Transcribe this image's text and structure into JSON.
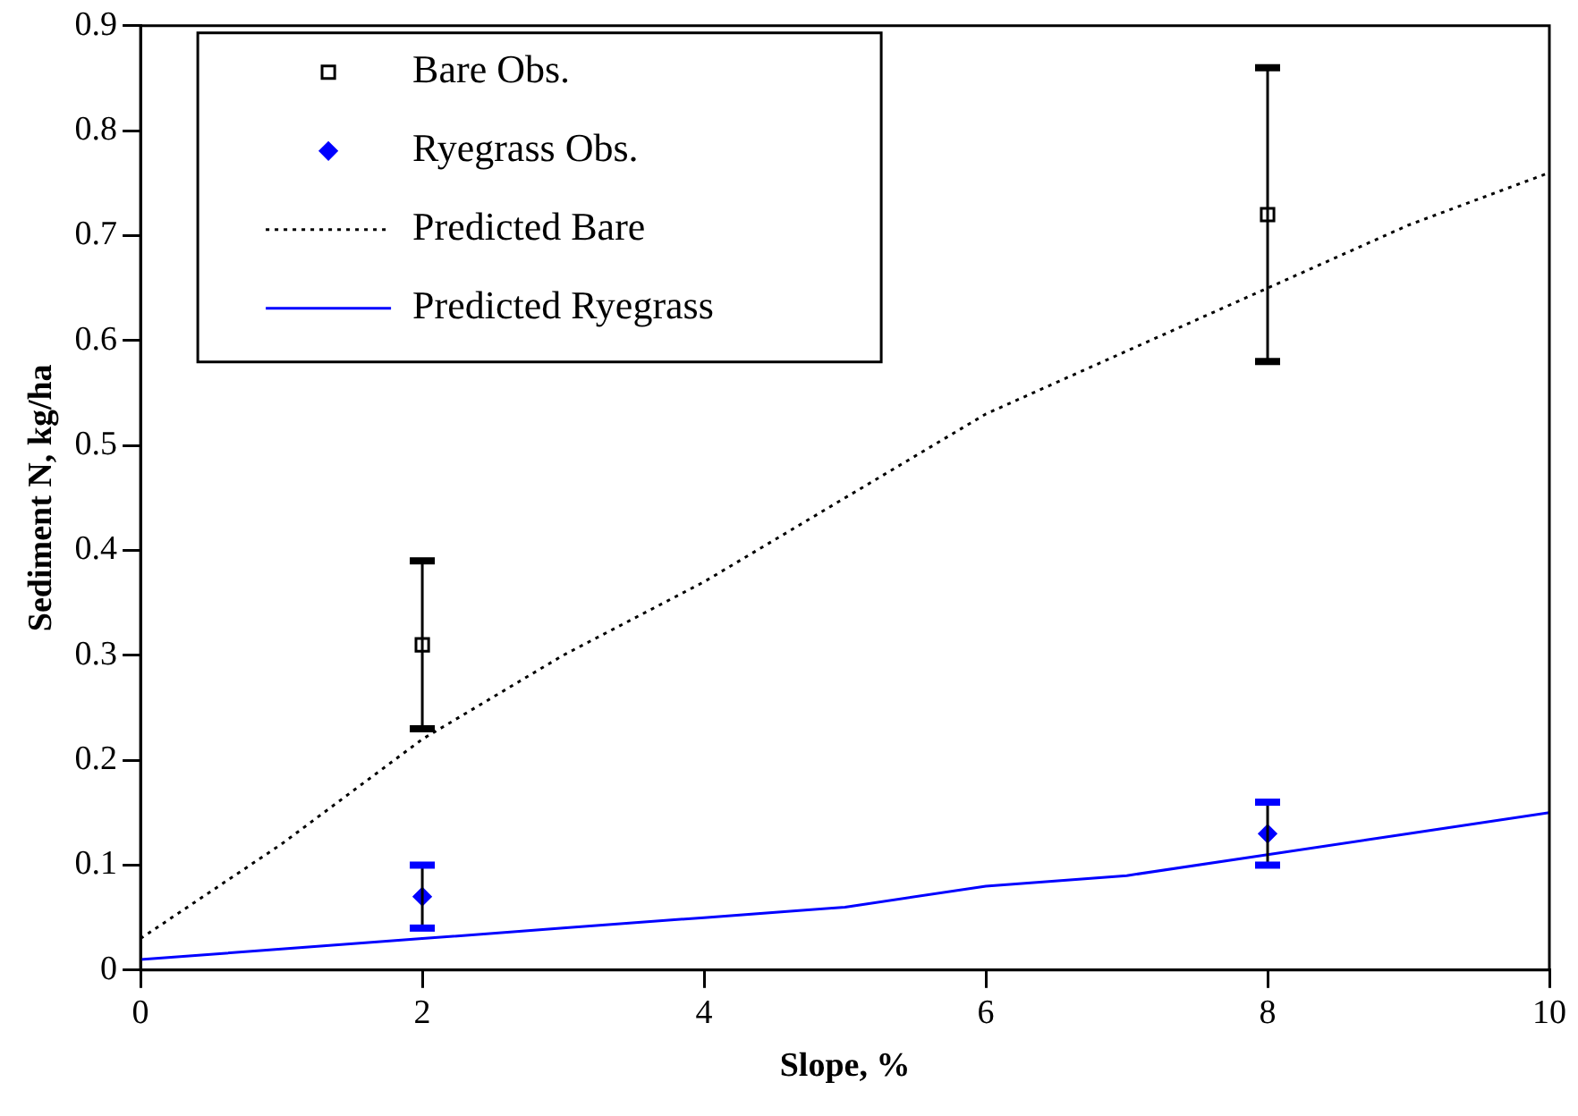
{
  "chart_data": {
    "type": "scatter",
    "xlabel": "Slope, %",
    "ylabel": "Sediment N, kg/ha",
    "xlim": [
      0,
      10
    ],
    "xticks": [
      0,
      2,
      4,
      6,
      8,
      10
    ],
    "ylim": [
      0,
      0.9
    ],
    "yticks": [
      0,
      0.1,
      0.2,
      0.3,
      0.4,
      0.5,
      0.6,
      0.7,
      0.8,
      0.9
    ],
    "grid": false,
    "legend": "top left",
    "series": [
      {
        "name": "Bare Obs.",
        "type": "scatter",
        "marker": "square",
        "color": "#000000",
        "x": [
          2,
          8
        ],
        "values": [
          0.31,
          0.72
        ],
        "errors": [
          [
            0.23,
            0.39
          ],
          [
            0.58,
            0.86
          ]
        ]
      },
      {
        "name": "Ryegrass Obs.",
        "type": "scatter",
        "marker": "diamond",
        "color": "#0000ff",
        "x": [
          2,
          8
        ],
        "values": [
          0.07,
          0.13
        ],
        "errors": [
          [
            0.04,
            0.1
          ],
          [
            0.1,
            0.16
          ]
        ]
      },
      {
        "name": "Predicted Bare",
        "type": "line",
        "marker": "none",
        "line_style": "dotted",
        "color": "#000000",
        "x": [
          0,
          1,
          2,
          3,
          4,
          5,
          6,
          7,
          8,
          9,
          10
        ],
        "values": [
          0.03,
          0.12,
          0.22,
          0.3,
          0.37,
          0.45,
          0.53,
          0.59,
          0.65,
          0.71,
          0.76
        ]
      },
      {
        "name": "Predicted Ryegrass",
        "type": "line",
        "marker": "none",
        "line_style": "solid",
        "color": "#0000ff",
        "x": [
          0,
          1,
          2,
          3,
          4,
          5,
          6,
          7,
          8,
          9,
          10
        ],
        "values": [
          0.01,
          0.02,
          0.03,
          0.04,
          0.05,
          0.06,
          0.08,
          0.09,
          0.11,
          0.13,
          0.15
        ]
      }
    ]
  }
}
